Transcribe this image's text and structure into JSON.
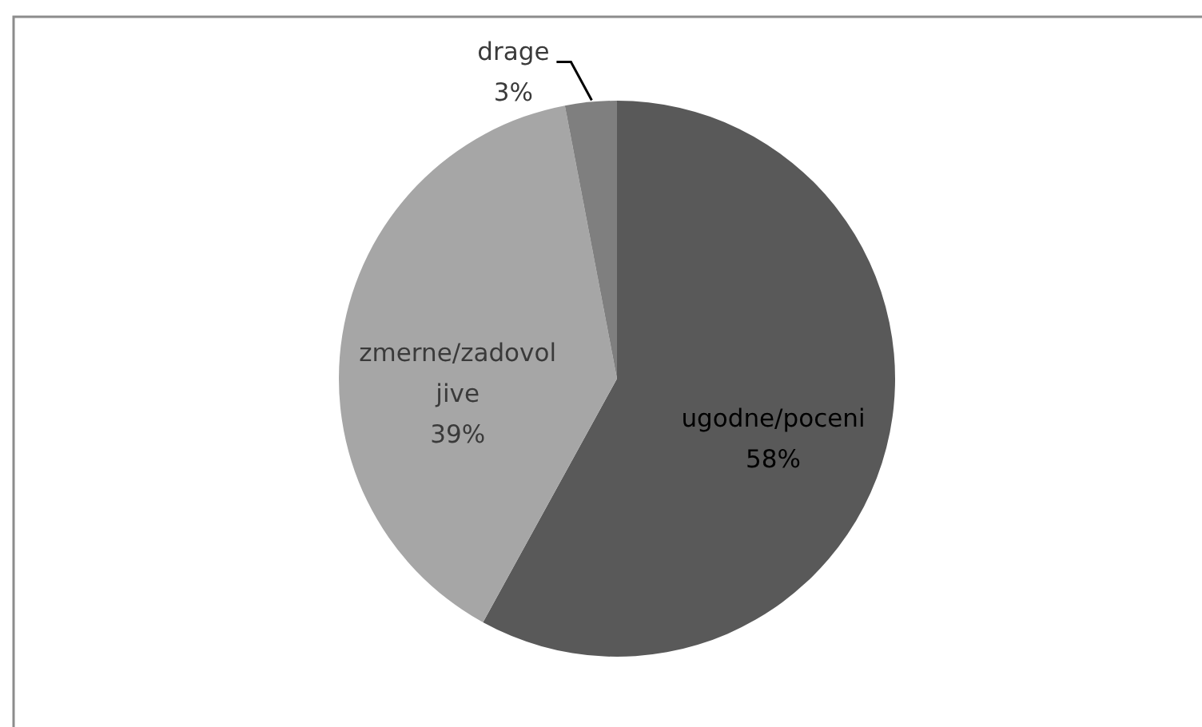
{
  "chart_data": {
    "type": "pie",
    "categories": [
      "ugodne/poceni",
      "zmerne/zadovol\njive",
      "drage"
    ],
    "values": [
      58,
      39,
      3
    ],
    "colors": [
      "#595959",
      "#a6a6a6",
      "#7f7f7f"
    ],
    "value_labels": [
      "58%",
      "39%",
      "3%"
    ]
  }
}
